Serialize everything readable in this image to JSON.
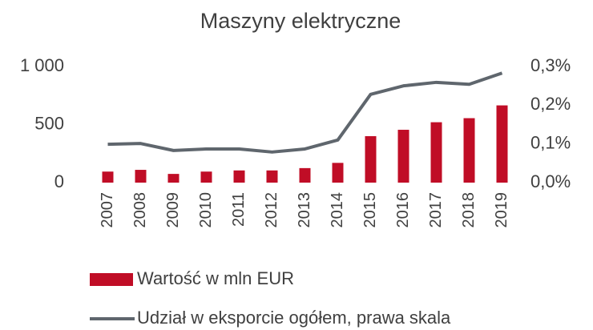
{
  "chart_data": {
    "type": "bar-line",
    "title": "Maszyny elektryczne",
    "categories": [
      "2007",
      "2008",
      "2009",
      "2010",
      "2011",
      "2012",
      "2013",
      "2014",
      "2015",
      "2016",
      "2017",
      "2018",
      "2019"
    ],
    "series": [
      {
        "name": "Wartość w mln EUR",
        "type": "bar",
        "color": "#c00d26",
        "values": [
          95,
          110,
          75,
          95,
          105,
          105,
          125,
          170,
          400,
          455,
          520,
          555,
          665
        ]
      },
      {
        "name": "Udział w eksporcie ogółem, prawa skala",
        "type": "line",
        "axis": "y2",
        "color": "#5f666d",
        "values": [
          0.099,
          0.101,
          0.083,
          0.087,
          0.087,
          0.079,
          0.087,
          0.11,
          0.228,
          0.25,
          0.259,
          0.254,
          0.283
        ]
      }
    ],
    "ylim": [
      0,
      1000
    ],
    "yticks": [
      0,
      500,
      {
        "value": 1000,
        "label": "1 000"
      }
    ],
    "y2lim": [
      0,
      0.3
    ],
    "y2ticks": [
      {
        "value": 0,
        "label": "0,0%"
      },
      {
        "value": 0.1,
        "label": "0,1%"
      },
      {
        "value": 0.2,
        "label": "0,2%"
      },
      {
        "value": 0.3,
        "label": "0,3%"
      }
    ],
    "grid": false
  }
}
